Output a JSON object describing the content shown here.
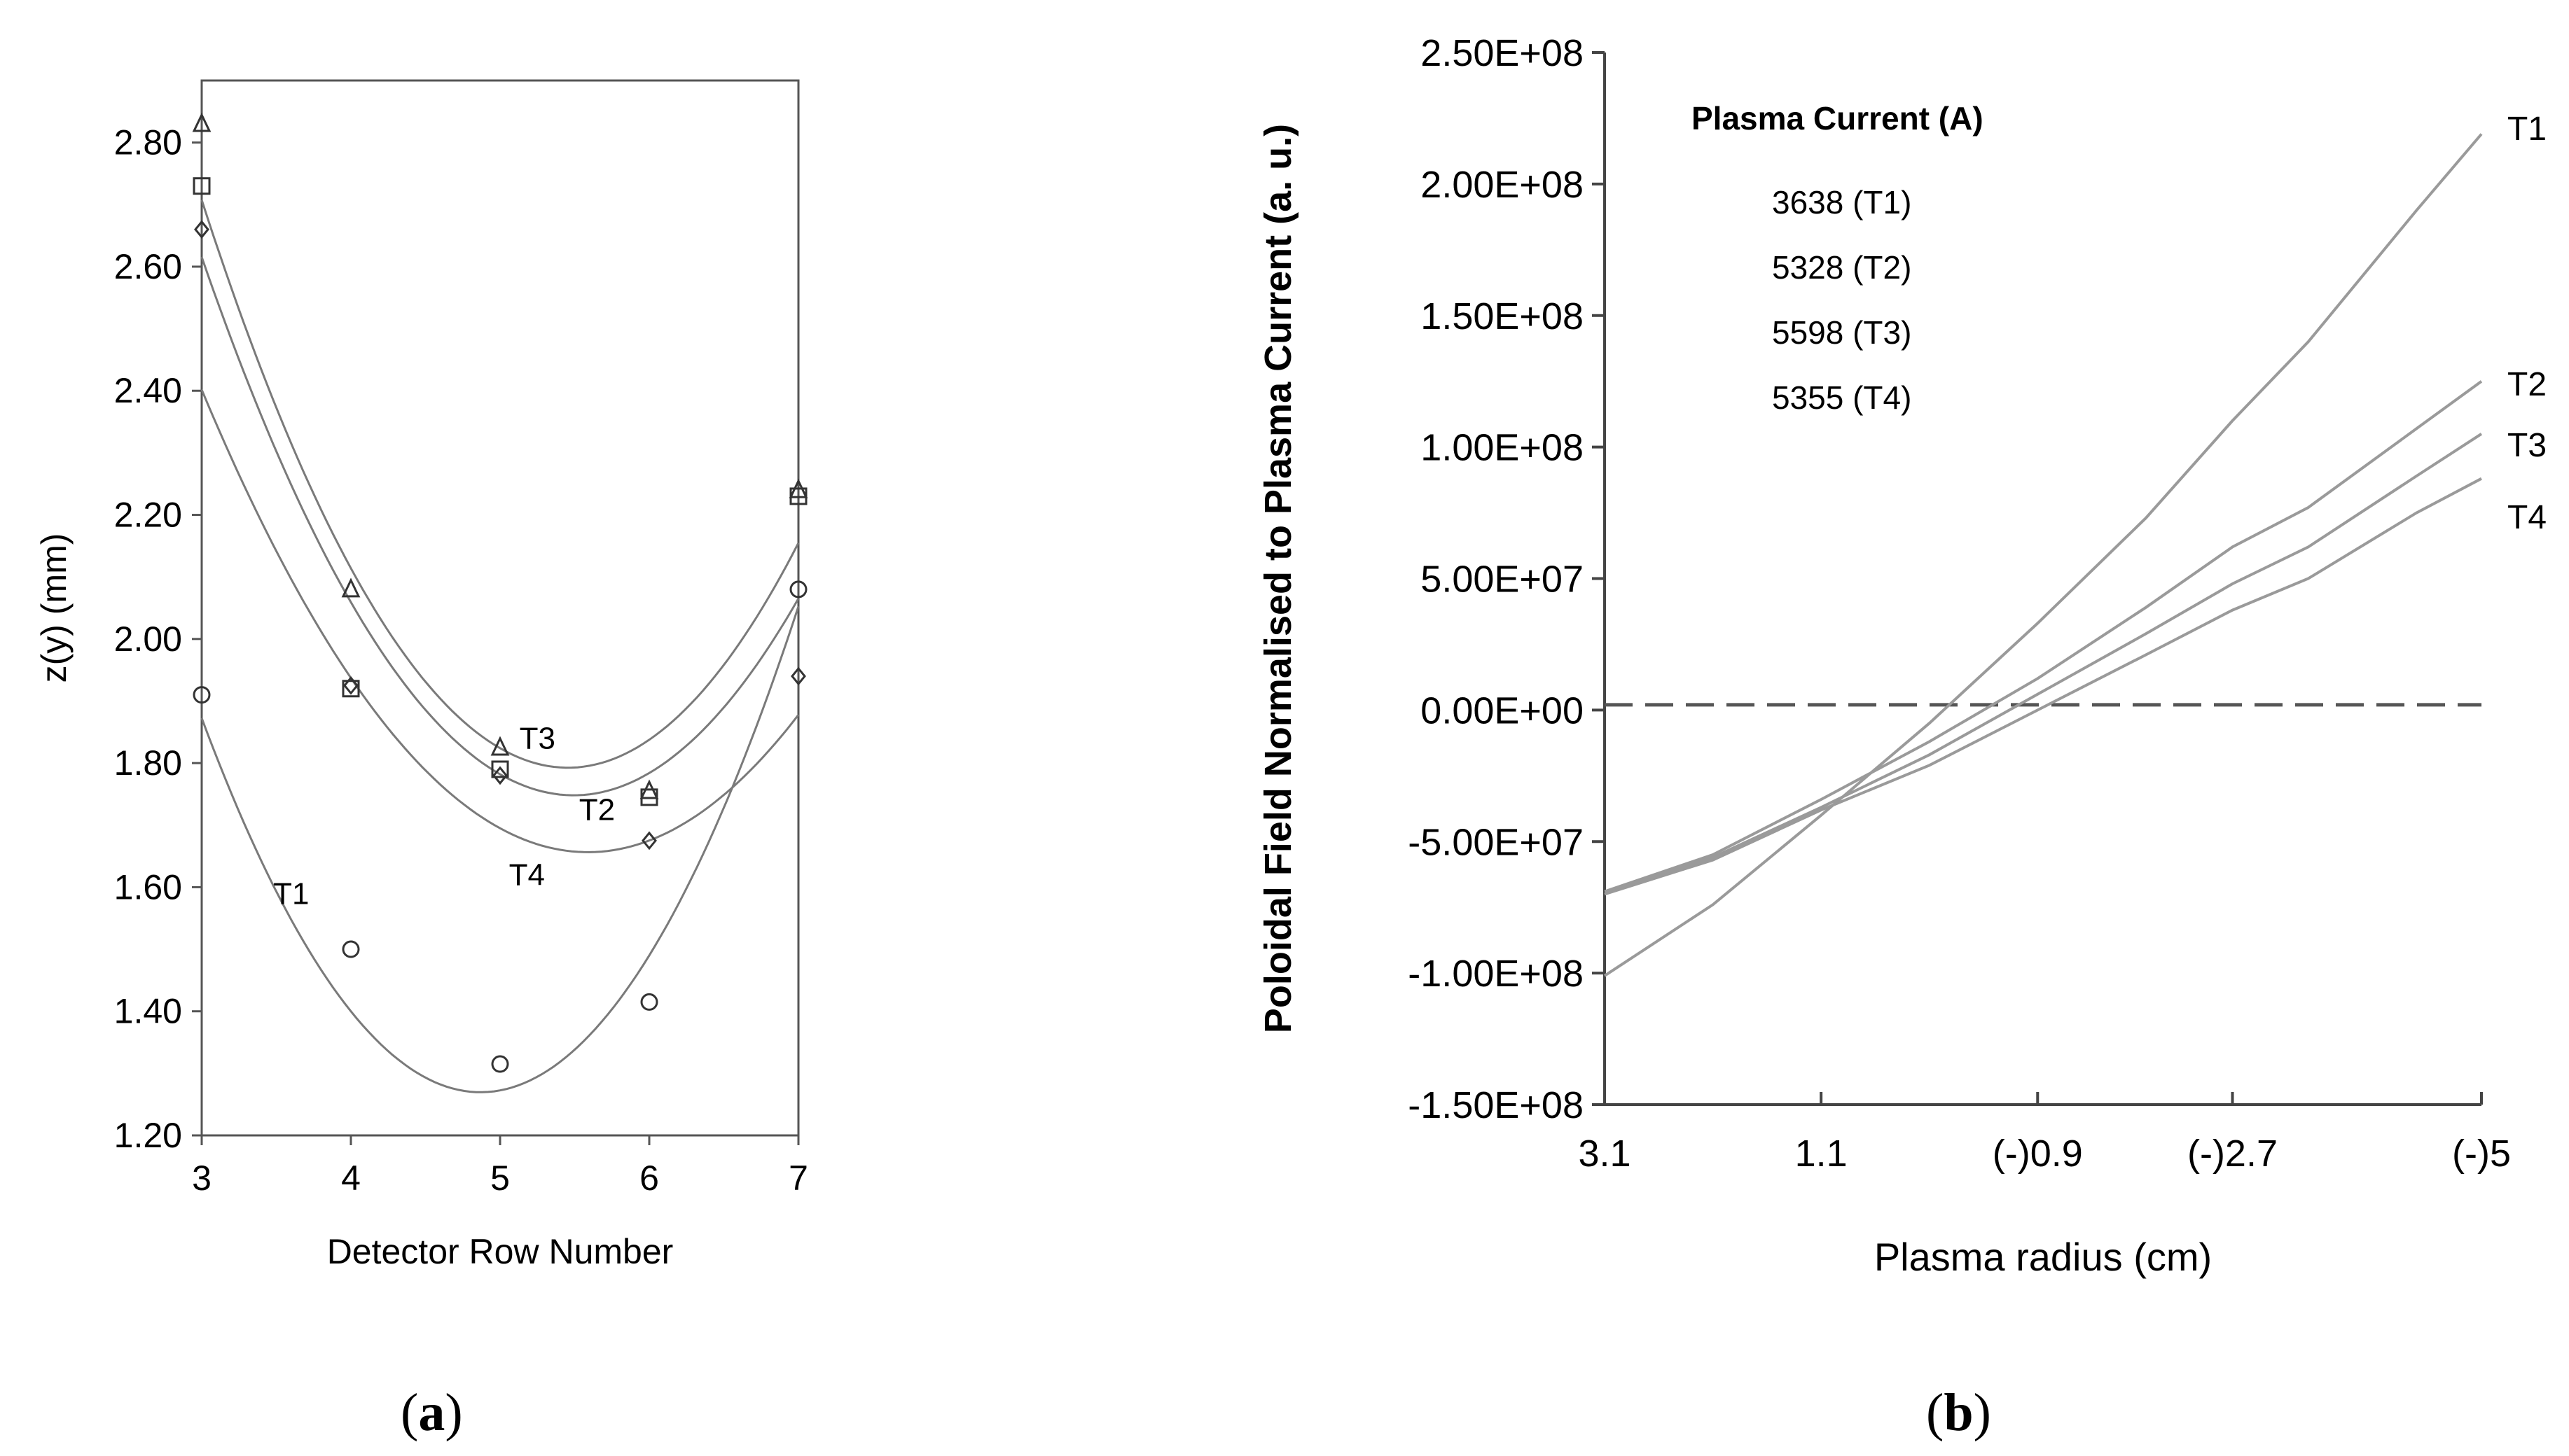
{
  "chart_data": [
    {
      "type": "scatter",
      "panel_label": "a",
      "title": "",
      "xlabel": "Detector Row Number",
      "ylabel": "z(y)  (mm)",
      "xlim": [
        3,
        7
      ],
      "ylim": [
        1.2,
        2.9
      ],
      "xticks": [
        3,
        4,
        5,
        6,
        7
      ],
      "xtick_labels": [
        "3",
        "4",
        "5",
        "6",
        "7"
      ],
      "yticks": [
        1.2,
        1.4,
        1.6,
        1.8,
        2.0,
        2.2,
        2.4,
        2.6,
        2.8
      ],
      "ytick_labels": [
        "1.20",
        "1.40",
        "1.60",
        "1.80",
        "2.00",
        "2.20",
        "2.40",
        "2.60",
        "2.80"
      ],
      "grid": false,
      "series": [
        {
          "name": "T1",
          "marker": "circle",
          "x": [
            3,
            4,
            5,
            6,
            7
          ],
          "y": [
            1.91,
            1.5,
            1.315,
            1.415,
            2.08
          ],
          "fit": [
            0.1725,
            -1.68,
            5.36
          ],
          "curve_label_at": [
            3.6,
            1.59
          ]
        },
        {
          "name": "T2",
          "marker": "square",
          "x": [
            3,
            4,
            5,
            6,
            7
          ],
          "y": [
            2.73,
            1.92,
            1.79,
            1.745,
            2.23
          ],
          "fit": [
            0.1396,
            -1.5336,
            5.96
          ],
          "curve_label_at": [
            5.65,
            1.725
          ]
        },
        {
          "name": "T3",
          "marker": "triangle",
          "x": [
            3,
            4,
            5,
            6,
            7
          ],
          "y": [
            2.83,
            2.08,
            1.825,
            1.755,
            2.24
          ],
          "fit": [
            0.1518,
            -1.6562,
            6.31
          ],
          "curve_label_at": [
            5.25,
            1.84
          ]
        },
        {
          "name": "T4",
          "marker": "diamond",
          "x": [
            3,
            4,
            5,
            6,
            7
          ],
          "y": [
            2.66,
            1.925,
            1.78,
            1.675,
            1.94
          ],
          "fit": [
            0.1112,
            -1.243,
            5.13
          ],
          "curve_label_at": [
            5.18,
            1.62
          ]
        }
      ]
    },
    {
      "type": "line",
      "panel_label": "b",
      "title": "",
      "xlabel": "Plasma radius (cm)",
      "ylabel": "Poloidal Field Normalised to Plasma Current (a. u.)",
      "x": [
        3.1,
        2.1,
        1.1,
        0.1,
        -0.9,
        -1.9,
        -2.7,
        -3.4,
        -4.4,
        -5.0
      ],
      "xlim": [
        3.1,
        -5.0
      ],
      "xticks": [
        3.1,
        1.1,
        -0.9,
        -2.7,
        -5.0
      ],
      "xtick_labels": [
        "3.1",
        "1.1",
        "(-)0.9",
        "(-)2.7",
        "(-)5"
      ],
      "ylim": [
        -150000000,
        250000000
      ],
      "yticks": [
        -150000000,
        -100000000,
        -50000000,
        0,
        50000000,
        100000000,
        150000000,
        200000000,
        250000000
      ],
      "ytick_labels": [
        "-1.50E+08",
        "-1.00E+08",
        "-5.00E+07",
        "0.00E+00",
        "5.00E+07",
        "1.00E+08",
        "1.50E+08",
        "2.00E+08",
        "2.50E+08"
      ],
      "grid": false,
      "legend_title": "Plasma Current (A)",
      "legend_position": "top-left",
      "series": [
        {
          "name": "T1",
          "legend_label": "3638 (T1)",
          "current_A": 3638,
          "values": [
            -101000000,
            -74000000,
            -40000000,
            -5000000,
            33000000,
            73000000,
            110000000,
            140000000,
            190000000,
            219000000
          ]
        },
        {
          "name": "T2",
          "legend_label": "5328 (T2)",
          "current_A": 5328,
          "values": [
            -69000000,
            -55000000,
            -34000000,
            -12000000,
            12000000,
            39000000,
            62000000,
            77000000,
            107000000,
            125000000
          ]
        },
        {
          "name": "T3",
          "legend_label": "5598 (T3)",
          "current_A": 5598,
          "values": [
            -70000000,
            -56000000,
            -37000000,
            -17000000,
            6000000,
            29000000,
            48000000,
            62000000,
            89000000,
            105000000
          ]
        },
        {
          "name": "T4",
          "legend_label": "5355 (T4)",
          "current_A": 5355,
          "values": [
            -70000000,
            -57000000,
            -38000000,
            -21000000,
            0,
            21000000,
            38000000,
            50000000,
            75000000,
            88000000
          ]
        }
      ],
      "reference_line": {
        "y": 2000000,
        "style": "dashed"
      }
    }
  ]
}
